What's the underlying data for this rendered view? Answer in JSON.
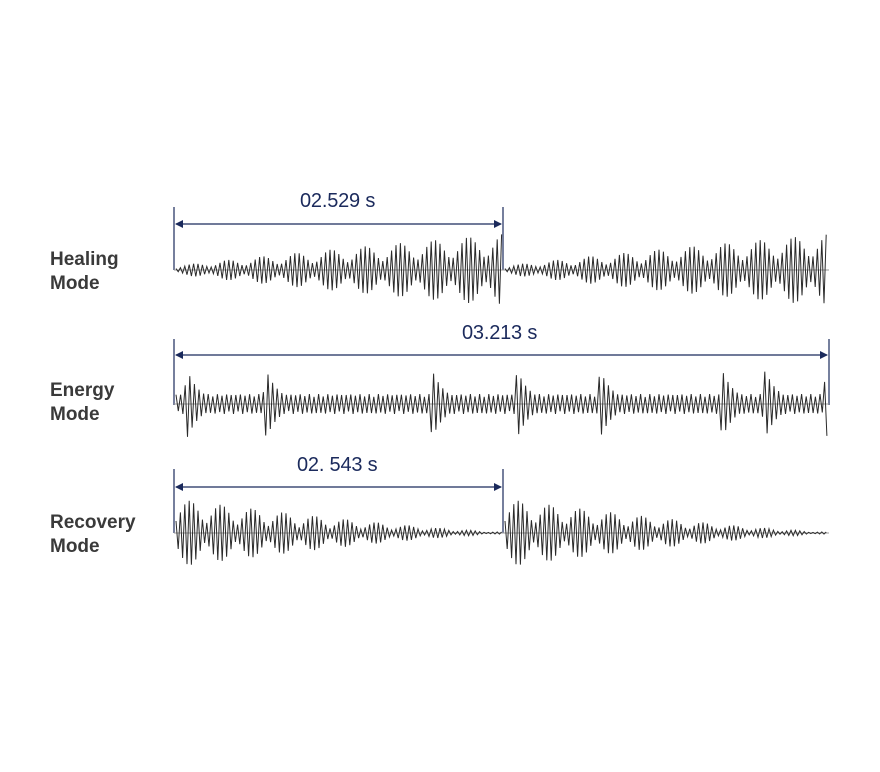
{
  "colors": {
    "label_text": "#3a3a3a",
    "dimension_blue": "#1b2a5c",
    "waveform": "#2a2a2a",
    "baseline": "#9a9a9a"
  },
  "modes": [
    {
      "line1": "Healing",
      "line2": "Mode",
      "duration": "02.529 s",
      "envelope": "crescendo-bursts",
      "cycles_shown": 2
    },
    {
      "line1": "Energy",
      "line2": "Mode",
      "duration": "03.213 s",
      "envelope": "sharp-spikes",
      "cycles_shown": 1
    },
    {
      "line1": "Recovery",
      "line2": "Mode",
      "duration": "02. 543 s",
      "envelope": "decaying-bursts",
      "cycles_shown": 2
    }
  ]
}
